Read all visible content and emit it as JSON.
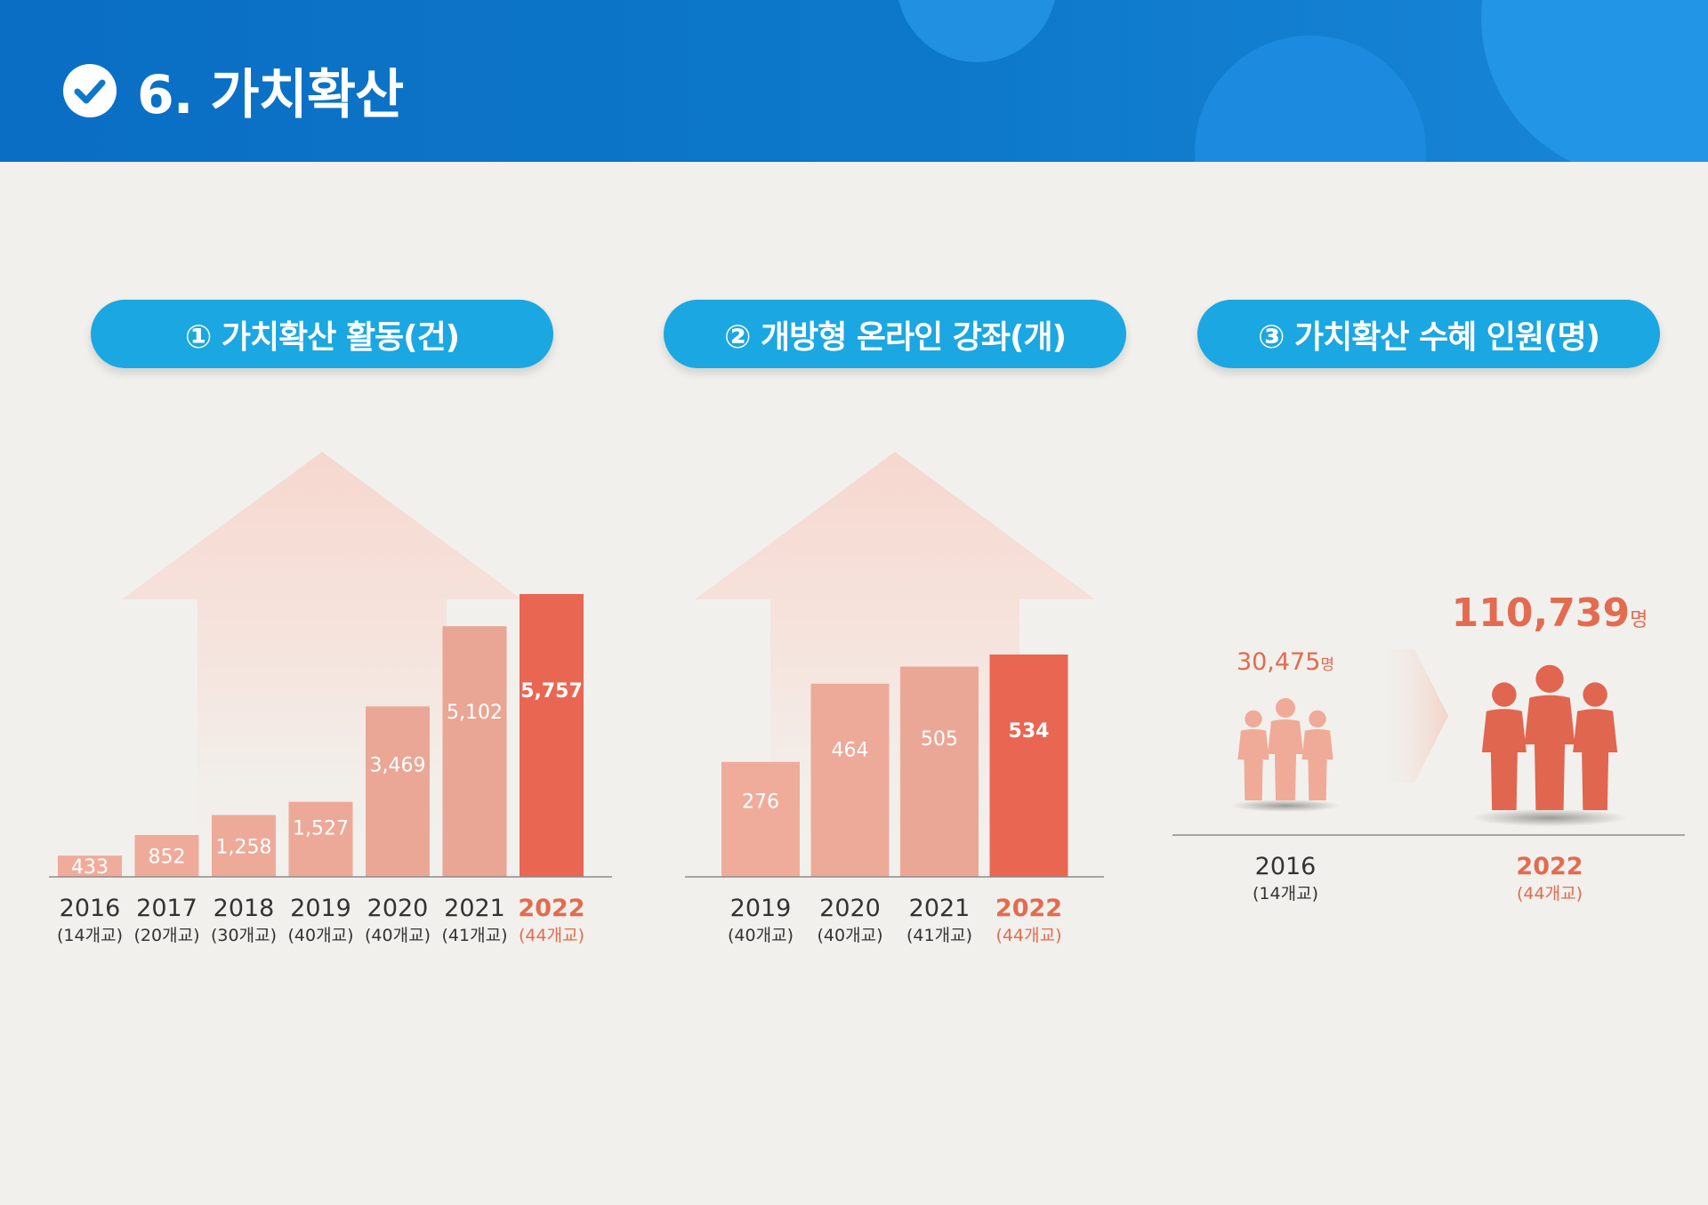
{
  "header": {
    "title": "6. 가치확산",
    "icon": "check-circle-icon"
  },
  "colors": {
    "header_blue": "#0d78c9",
    "pill_blue": "#1ba7e1",
    "bar_light": "#f0ac9b",
    "bar_highlight": "#e96752",
    "text_highlight": "#e36b4f"
  },
  "chart_data": [
    {
      "type": "bar",
      "title": "① 가치확산 활동(건)",
      "categories": [
        "2016",
        "2017",
        "2018",
        "2019",
        "2020",
        "2021",
        "2022"
      ],
      "sublabels": [
        "(14개교)",
        "(20개교)",
        "(30개교)",
        "(40개교)",
        "(40개교)",
        "(41개교)",
        "(44개교)"
      ],
      "values": [
        433,
        852,
        1258,
        1527,
        3469,
        5102,
        5757
      ],
      "value_labels": [
        "433",
        "852",
        "1,258",
        "1,527",
        "3,469",
        "5,102",
        "5,757"
      ],
      "highlight_index": 6,
      "ylim": [
        0,
        5757
      ]
    },
    {
      "type": "bar",
      "title": "② 개방형 온라인 강좌(개)",
      "categories": [
        "2019",
        "2020",
        "2021",
        "2022"
      ],
      "sublabels": [
        "(40개교)",
        "(40개교)",
        "(41개교)",
        "(44개교)"
      ],
      "values": [
        276,
        464,
        505,
        534
      ],
      "value_labels": [
        "276",
        "464",
        "505",
        "534"
      ],
      "highlight_index": 3,
      "ylim": [
        0,
        534
      ]
    },
    {
      "type": "pictograph",
      "title": "③ 가치확산 수혜 인원(명)",
      "categories": [
        "2016",
        "2022"
      ],
      "sublabels": [
        "(14개교)",
        "(44개교)"
      ],
      "values": [
        30475,
        110739
      ],
      "value_labels": [
        "30,475",
        "110,739"
      ],
      "unit": "명",
      "icon": "people-group-icon",
      "highlight_index": 1
    }
  ]
}
